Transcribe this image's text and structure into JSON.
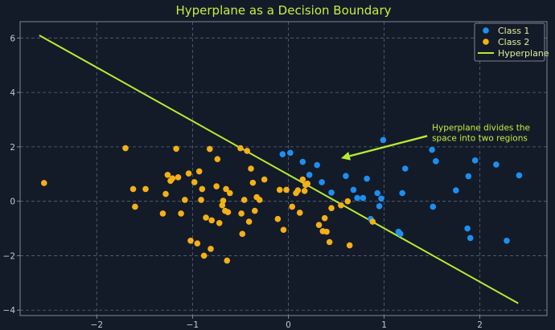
{
  "chart_data": {
    "type": "scatter",
    "title": "Hyperplane as a Decision Boundary",
    "xlabel": "",
    "ylabel": "",
    "xlim": [
      -2.8,
      2.7
    ],
    "ylim": [
      -4.2,
      6.6
    ],
    "grid": true,
    "legend_position": "top-right",
    "xticks": [
      -2,
      -1,
      0,
      1,
      2
    ],
    "yticks": [
      -4,
      -2,
      0,
      2,
      4,
      6
    ],
    "colors": {
      "background": "#131b29",
      "class1": "#1e8ff0",
      "class2": "#f5b016",
      "hyperplane": "#b7ec2f",
      "title": "#c2f03a",
      "grid": "#5a6478",
      "tick_text": "#c3c9d1"
    },
    "series": [
      {
        "name": "Class 1",
        "kind": "scatter",
        "color": "#1e8ff0",
        "x": [
          -0.06,
          0.02,
          0.15,
          0.22,
          0.3,
          0.35,
          0.45,
          0.6,
          0.68,
          0.72,
          0.78,
          0.82,
          0.86,
          0.93,
          0.95,
          0.97,
          0.99,
          1.15,
          1.17,
          1.19,
          1.22,
          1.5,
          1.51,
          1.54,
          1.75,
          1.87,
          1.88,
          1.9,
          1.95,
          2.17,
          2.28,
          2.41
        ],
        "y": [
          1.73,
          1.78,
          1.45,
          0.97,
          1.33,
          0.7,
          0.32,
          0.93,
          0.42,
          0.12,
          0.12,
          0.83,
          -0.65,
          0.3,
          -0.18,
          0.1,
          2.25,
          -1.12,
          -1.2,
          0.3,
          1.2,
          1.89,
          -0.2,
          1.47,
          0.4,
          -1.0,
          0.92,
          -1.35,
          1.5,
          1.35,
          -1.45,
          0.95
        ]
      },
      {
        "name": "Class 2",
        "kind": "scatter",
        "color": "#f5b016",
        "x": [
          -2.55,
          -1.7,
          -1.62,
          -1.6,
          -1.49,
          -1.31,
          -1.28,
          -1.26,
          -1.23,
          -1.21,
          -1.17,
          -1.15,
          -1.12,
          -1.08,
          -1.04,
          -1.02,
          -0.98,
          -0.95,
          -0.93,
          -0.91,
          -0.9,
          -0.88,
          -0.86,
          -0.82,
          -0.81,
          -0.8,
          -0.75,
          -0.74,
          -0.72,
          -0.69,
          -0.68,
          -0.66,
          -0.65,
          -0.64,
          -0.63,
          -0.61,
          -0.5,
          -0.49,
          -0.48,
          -0.46,
          -0.43,
          -0.41,
          -0.39,
          -0.37,
          -0.35,
          -0.33,
          -0.3,
          -0.25,
          -0.11,
          -0.09,
          -0.05,
          -0.02,
          0.04,
          0.08,
          0.1,
          0.12,
          0.15,
          0.17,
          0.18,
          0.2,
          0.32,
          0.36,
          0.38,
          0.4,
          0.43,
          0.45,
          0.55,
          0.62,
          0.64,
          0.88
        ],
        "y": [
          0.67,
          1.95,
          0.45,
          -0.2,
          0.45,
          -0.45,
          0.27,
          0.97,
          0.75,
          0.84,
          1.93,
          0.88,
          -0.45,
          0.05,
          1.02,
          -1.45,
          0.7,
          -1.55,
          1.1,
          0.05,
          0.45,
          -2.0,
          -0.6,
          1.92,
          -1.75,
          -0.7,
          0.55,
          1.55,
          -0.8,
          -0.15,
          0.02,
          -0.35,
          0.45,
          -2.18,
          -0.4,
          0.3,
          1.95,
          -0.45,
          -1.2,
          0.05,
          1.85,
          -0.75,
          1.2,
          0.68,
          -0.35,
          0.15,
          0.05,
          0.8,
          -0.65,
          0.42,
          -1.05,
          0.42,
          -0.2,
          0.3,
          0.4,
          -0.42,
          0.8,
          0.38,
          0.6,
          0.65,
          -0.87,
          -1.1,
          -0.62,
          -1.12,
          -1.5,
          -0.25,
          -0.15,
          0.0,
          -1.62,
          -0.75
        ]
      },
      {
        "name": "Hyperplane",
        "kind": "line",
        "color": "#b7ec2f",
        "x": [
          -2.6,
          2.4
        ],
        "y": [
          6.1,
          -3.75
        ]
      }
    ],
    "annotations": [
      {
        "text_lines": [
          "Hyperplane divides the",
          "space into two regions"
        ],
        "text_x": 1.5,
        "text_y": 2.6,
        "arrow_from": [
          1.45,
          2.4
        ],
        "arrow_to": [
          0.55,
          1.58
        ]
      }
    ]
  }
}
